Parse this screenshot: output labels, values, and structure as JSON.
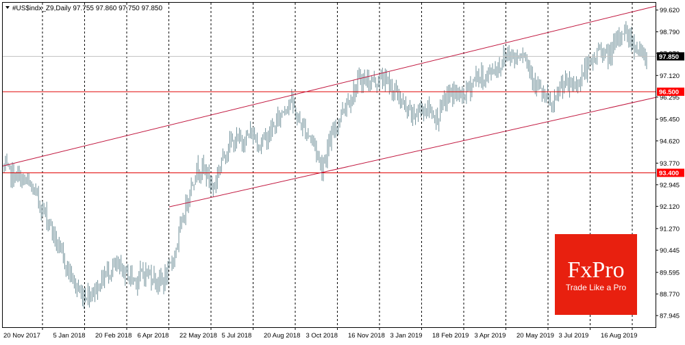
{
  "header": {
    "symbol_line": "#US$indx_Z9,Daily  97.755 97.860 97.750 97.850"
  },
  "colors": {
    "background": "#ffffff",
    "frame": "#000000",
    "grid": "#000000",
    "bars": "#6f8f98",
    "level_line": "#e00000",
    "channel_line": "#c0143c",
    "price_line": "#c0c0c0",
    "label_red_bg": "#ff0000",
    "label_black_bg": "#000000",
    "logo_bg": "#e8200f"
  },
  "logo": {
    "brand": "FxPro",
    "tagline": "Trade Like a Pro"
  },
  "chart_data": {
    "type": "ohlc",
    "ylim": [
      87.5,
      99.9
    ],
    "y_ticks": [
      99.62,
      98.79,
      97.97,
      97.12,
      96.295,
      95.45,
      94.62,
      93.77,
      92.945,
      92.12,
      91.27,
      90.445,
      89.595,
      88.77,
      87.945
    ],
    "y_tick_labels": [
      "99.620",
      "98.790",
      "97.970",
      "97.120",
      "96.295",
      "95.450",
      "94.620",
      "93.770",
      "92.945",
      "92.120",
      "91.270",
      "90.445",
      "89.595",
      "88.770",
      "87.945"
    ],
    "x_tick_labels": [
      "20 Nov 2017",
      "5 Jan 2018",
      "20 Feb 2018",
      "6 Apr 2018",
      "22 May 2018",
      "5 Jul 2018",
      "20 Aug 2018",
      "3 Oct 2018",
      "16 Nov 2018",
      "3 Jan 2019",
      "18 Feb 2019",
      "3 Apr 2019",
      "20 May 2019",
      "3 Jul 2019",
      "16 Aug 2019"
    ],
    "series": [
      {
        "values": [
          93.6,
          93.3,
          93.2,
          93.0,
          92.6,
          92.0,
          91.4,
          90.5,
          89.9,
          89.2,
          88.7,
          88.8,
          89.0,
          89.5,
          89.8,
          89.7,
          89.5,
          89.3,
          89.6,
          89.5,
          89.2,
          89.4,
          90.3,
          91.5,
          92.8,
          93.6,
          93.5,
          92.8,
          93.8,
          94.5,
          94.6,
          94.7,
          94.9,
          94.5,
          94.8,
          95.2,
          95.8,
          96.2,
          95.4,
          95.0,
          94.6,
          93.6,
          94.5,
          95.3,
          96.0,
          96.4,
          97.0,
          96.9,
          96.9,
          97.0,
          96.7,
          96.3,
          95.7,
          95.6,
          95.9,
          95.8,
          95.5,
          96.2,
          96.5,
          96.3,
          96.6,
          97.1,
          97.0,
          97.3,
          97.5,
          98.0,
          97.8,
          98.1,
          97.3,
          96.6,
          96.2,
          95.9,
          96.8,
          96.7,
          96.8,
          97.3,
          97.6,
          98.2,
          97.8,
          98.3,
          98.9,
          98.5,
          98.0,
          97.8
        ]
      }
    ],
    "horizontal_levels": [
      {
        "value": 96.5,
        "label": "96.500"
      },
      {
        "value": 93.4,
        "label": "93.400"
      }
    ],
    "current_price": {
      "value": 97.85,
      "label": "97.850"
    },
    "channel": {
      "upper": {
        "from_value": 93.66,
        "to_value": 99.77
      },
      "lower": {
        "from_value": 92.1,
        "to_value": 96.28
      }
    },
    "grid": true
  }
}
